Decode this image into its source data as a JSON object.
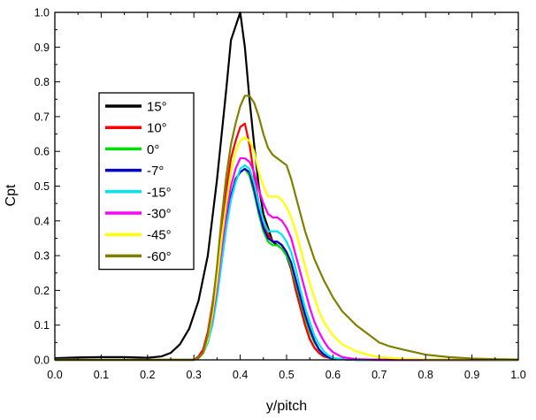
{
  "chart_data": {
    "type": "line",
    "xlabel": "y/pitch",
    "ylabel": "Cpt",
    "xlim": [
      0.0,
      1.0
    ],
    "ylim": [
      0.0,
      1.0
    ],
    "xticks": [
      "0.0",
      "0.1",
      "0.2",
      "0.3",
      "0.4",
      "0.5",
      "0.6",
      "0.7",
      "0.8",
      "0.9",
      "1.0"
    ],
    "yticks": [
      "0.0",
      "0.1",
      "0.2",
      "0.3",
      "0.4",
      "0.5",
      "0.6",
      "0.7",
      "0.8",
      "0.9",
      "1.0"
    ],
    "grid": false,
    "legend_position": "left",
    "series": [
      {
        "name": "15°",
        "color": "#000000",
        "x": [
          0,
          0.05,
          0.1,
          0.15,
          0.2,
          0.23,
          0.25,
          0.27,
          0.29,
          0.31,
          0.33,
          0.35,
          0.37,
          0.38,
          0.39,
          0.4,
          0.41,
          0.42,
          0.43,
          0.44,
          0.45,
          0.46,
          0.47,
          0.48,
          0.49,
          0.5,
          0.51,
          0.52,
          0.53,
          0.54,
          0.55,
          0.56,
          0.57,
          0.58,
          0.6,
          0.62,
          0.65,
          0.7,
          0.8,
          0.9,
          1.0
        ],
        "y": [
          0.005,
          0.007,
          0.008,
          0.008,
          0.006,
          0.01,
          0.02,
          0.045,
          0.09,
          0.17,
          0.3,
          0.52,
          0.78,
          0.92,
          0.96,
          1.0,
          0.9,
          0.75,
          0.62,
          0.5,
          0.42,
          0.38,
          0.34,
          0.33,
          0.32,
          0.3,
          0.26,
          0.2,
          0.15,
          0.1,
          0.06,
          0.035,
          0.02,
          0.01,
          0.004,
          0.002,
          0.001,
          0.0,
          0.0,
          0.0,
          0.0
        ]
      },
      {
        "name": "10°",
        "color": "#ff0000",
        "x": [
          0,
          0.2,
          0.3,
          0.31,
          0.32,
          0.33,
          0.34,
          0.35,
          0.36,
          0.37,
          0.38,
          0.39,
          0.4,
          0.41,
          0.42,
          0.43,
          0.44,
          0.45,
          0.46,
          0.47,
          0.48,
          0.49,
          0.5,
          0.51,
          0.52,
          0.53,
          0.54,
          0.55,
          0.56,
          0.57,
          0.58,
          0.6,
          0.65,
          0.7,
          0.8,
          1.0
        ],
        "y": [
          0.0,
          0.0,
          0.0,
          0.01,
          0.03,
          0.08,
          0.16,
          0.26,
          0.38,
          0.49,
          0.58,
          0.63,
          0.67,
          0.68,
          0.62,
          0.53,
          0.45,
          0.4,
          0.36,
          0.34,
          0.34,
          0.33,
          0.31,
          0.26,
          0.2,
          0.15,
          0.1,
          0.06,
          0.035,
          0.02,
          0.01,
          0.003,
          0.0,
          0.0,
          0.0,
          0.0
        ]
      },
      {
        "name": "0°",
        "color": "#00e000",
        "x": [
          0,
          0.2,
          0.3,
          0.31,
          0.32,
          0.33,
          0.34,
          0.35,
          0.36,
          0.37,
          0.38,
          0.39,
          0.4,
          0.41,
          0.42,
          0.43,
          0.44,
          0.45,
          0.46,
          0.47,
          0.48,
          0.49,
          0.5,
          0.51,
          0.52,
          0.53,
          0.54,
          0.55,
          0.56,
          0.57,
          0.58,
          0.59,
          0.6,
          0.65,
          0.7,
          1.0
        ],
        "y": [
          0.0,
          0.0,
          0.0,
          0.005,
          0.02,
          0.05,
          0.11,
          0.2,
          0.3,
          0.4,
          0.47,
          0.52,
          0.54,
          0.55,
          0.53,
          0.48,
          0.42,
          0.37,
          0.34,
          0.33,
          0.33,
          0.32,
          0.3,
          0.27,
          0.22,
          0.17,
          0.12,
          0.08,
          0.05,
          0.03,
          0.015,
          0.008,
          0.003,
          0.0,
          0.0,
          0.0
        ]
      },
      {
        "name": "-7°",
        "color": "#0000cc",
        "x": [
          0,
          0.2,
          0.3,
          0.31,
          0.32,
          0.33,
          0.34,
          0.35,
          0.36,
          0.37,
          0.38,
          0.39,
          0.4,
          0.41,
          0.42,
          0.43,
          0.44,
          0.45,
          0.46,
          0.47,
          0.48,
          0.49,
          0.5,
          0.51,
          0.52,
          0.53,
          0.54,
          0.55,
          0.56,
          0.57,
          0.58,
          0.59,
          0.6,
          0.65,
          0.7,
          1.0
        ],
        "y": [
          0.0,
          0.0,
          0.0,
          0.005,
          0.02,
          0.05,
          0.11,
          0.2,
          0.3,
          0.4,
          0.47,
          0.52,
          0.54,
          0.55,
          0.54,
          0.49,
          0.43,
          0.38,
          0.35,
          0.34,
          0.34,
          0.33,
          0.31,
          0.28,
          0.23,
          0.18,
          0.13,
          0.09,
          0.055,
          0.03,
          0.016,
          0.008,
          0.003,
          0.0,
          0.0,
          0.0
        ]
      },
      {
        "name": "-15°",
        "color": "#00e5ee",
        "x": [
          0,
          0.2,
          0.3,
          0.31,
          0.32,
          0.33,
          0.34,
          0.35,
          0.36,
          0.37,
          0.38,
          0.39,
          0.4,
          0.41,
          0.42,
          0.43,
          0.44,
          0.45,
          0.46,
          0.47,
          0.48,
          0.49,
          0.5,
          0.51,
          0.52,
          0.53,
          0.54,
          0.55,
          0.56,
          0.57,
          0.58,
          0.59,
          0.6,
          0.62,
          0.65,
          0.7,
          1.0
        ],
        "y": [
          0.0,
          0.0,
          0.0,
          0.005,
          0.02,
          0.05,
          0.1,
          0.18,
          0.28,
          0.38,
          0.46,
          0.51,
          0.55,
          0.56,
          0.55,
          0.51,
          0.45,
          0.4,
          0.37,
          0.37,
          0.37,
          0.36,
          0.34,
          0.31,
          0.26,
          0.2,
          0.15,
          0.11,
          0.07,
          0.045,
          0.025,
          0.013,
          0.006,
          0.002,
          0.0,
          0.0,
          0.0
        ]
      },
      {
        "name": "-30°",
        "color": "#ff00ff",
        "x": [
          0,
          0.2,
          0.3,
          0.31,
          0.32,
          0.33,
          0.34,
          0.35,
          0.36,
          0.37,
          0.38,
          0.39,
          0.4,
          0.41,
          0.42,
          0.43,
          0.44,
          0.45,
          0.46,
          0.47,
          0.48,
          0.49,
          0.5,
          0.51,
          0.52,
          0.53,
          0.54,
          0.55,
          0.56,
          0.57,
          0.58,
          0.59,
          0.6,
          0.62,
          0.65,
          0.7,
          1.0
        ],
        "y": [
          0.0,
          0.0,
          0.0,
          0.005,
          0.02,
          0.06,
          0.12,
          0.21,
          0.32,
          0.42,
          0.5,
          0.55,
          0.58,
          0.58,
          0.57,
          0.54,
          0.49,
          0.45,
          0.42,
          0.41,
          0.41,
          0.4,
          0.38,
          0.35,
          0.3,
          0.25,
          0.2,
          0.15,
          0.11,
          0.08,
          0.055,
          0.035,
          0.022,
          0.008,
          0.002,
          0.0,
          0.0
        ]
      },
      {
        "name": "-45°",
        "color": "#ffff00",
        "x": [
          0,
          0.2,
          0.3,
          0.31,
          0.32,
          0.33,
          0.34,
          0.35,
          0.36,
          0.37,
          0.38,
          0.39,
          0.4,
          0.41,
          0.42,
          0.43,
          0.44,
          0.45,
          0.46,
          0.47,
          0.48,
          0.49,
          0.5,
          0.51,
          0.52,
          0.53,
          0.54,
          0.55,
          0.56,
          0.57,
          0.58,
          0.6,
          0.62,
          0.65,
          0.68,
          0.7,
          0.75,
          0.8,
          1.0
        ],
        "y": [
          0.0,
          0.0,
          0.0,
          0.005,
          0.02,
          0.06,
          0.13,
          0.23,
          0.35,
          0.45,
          0.54,
          0.6,
          0.63,
          0.64,
          0.63,
          0.6,
          0.54,
          0.5,
          0.47,
          0.47,
          0.47,
          0.46,
          0.44,
          0.41,
          0.37,
          0.32,
          0.27,
          0.22,
          0.18,
          0.14,
          0.11,
          0.07,
          0.045,
          0.025,
          0.013,
          0.008,
          0.003,
          0.001,
          0.0
        ]
      },
      {
        "name": "-60°",
        "color": "#808000",
        "x": [
          0,
          0.2,
          0.3,
          0.31,
          0.32,
          0.33,
          0.34,
          0.35,
          0.36,
          0.37,
          0.38,
          0.39,
          0.4,
          0.41,
          0.42,
          0.43,
          0.44,
          0.45,
          0.46,
          0.47,
          0.48,
          0.49,
          0.5,
          0.51,
          0.52,
          0.53,
          0.54,
          0.55,
          0.56,
          0.58,
          0.6,
          0.62,
          0.65,
          0.68,
          0.7,
          0.72,
          0.75,
          0.8,
          0.85,
          0.9,
          0.95,
          1.0
        ],
        "y": [
          0.0,
          0.0,
          0.0,
          0.005,
          0.02,
          0.07,
          0.15,
          0.27,
          0.41,
          0.53,
          0.62,
          0.68,
          0.73,
          0.76,
          0.76,
          0.74,
          0.7,
          0.65,
          0.61,
          0.59,
          0.58,
          0.57,
          0.56,
          0.52,
          0.47,
          0.42,
          0.37,
          0.33,
          0.29,
          0.23,
          0.18,
          0.14,
          0.1,
          0.07,
          0.05,
          0.04,
          0.03,
          0.015,
          0.008,
          0.004,
          0.002,
          0.001
        ]
      }
    ]
  }
}
